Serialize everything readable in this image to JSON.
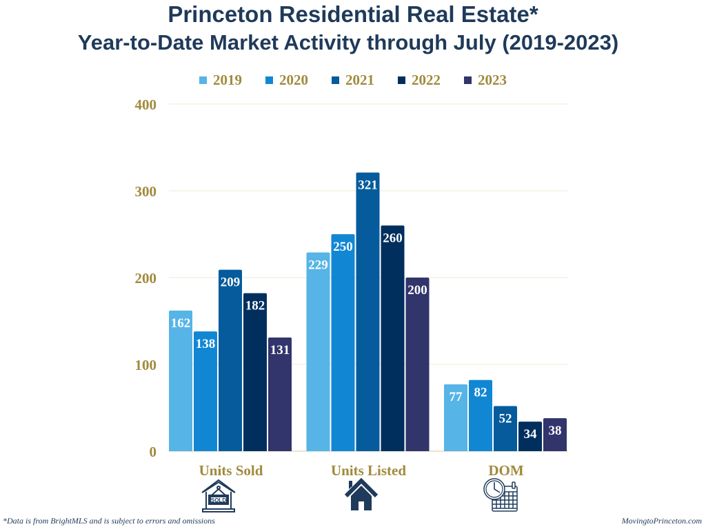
{
  "header": {
    "title": "Princeton Residential Real Estate*",
    "subtitle": "Year-to-Date Market Activity through July (2019-2023)"
  },
  "legend": [
    {
      "label": "2019",
      "color": "#56b4e6"
    },
    {
      "label": "2020",
      "color": "#1187d4"
    },
    {
      "label": "2021",
      "color": "#055b9c"
    },
    {
      "label": "2022",
      "color": "#002f5e"
    },
    {
      "label": "2023",
      "color": "#32346c"
    }
  ],
  "chart_data": {
    "type": "bar",
    "title": "Princeton Residential Real Estate* Year-to-Date Market Activity through July (2019-2023)",
    "xlabel": "",
    "ylabel": "",
    "categories": [
      "Units Sold",
      "Units Listed",
      "DOM"
    ],
    "series": [
      {
        "name": "2019",
        "color": "#56b4e6",
        "values": [
          162,
          229,
          77
        ]
      },
      {
        "name": "2020",
        "color": "#1187d4",
        "values": [
          138,
          250,
          82
        ]
      },
      {
        "name": "2021",
        "color": "#055b9c",
        "values": [
          209,
          321,
          52
        ]
      },
      {
        "name": "2022",
        "color": "#002f5e",
        "values": [
          182,
          260,
          34
        ]
      },
      {
        "name": "2023",
        "color": "#32346c",
        "values": [
          131,
          200,
          38
        ]
      }
    ],
    "ylim": [
      0,
      400
    ],
    "yticks": [
      0,
      100,
      200,
      300,
      400
    ],
    "grid": true,
    "legend_position": "top-center",
    "data_labels": true
  },
  "category_icons": [
    {
      "category": "Units Sold",
      "icon": "sold-house-icon",
      "sign_text": "SOLD"
    },
    {
      "category": "Units Listed",
      "icon": "house-icon"
    },
    {
      "category": "DOM",
      "icon": "clock-calendar-icon"
    }
  ],
  "colors": {
    "title": "#1f3a5a",
    "axis_text": "#a08a3c",
    "grid": "#efe8d6",
    "icon": "#1f3a5a"
  },
  "footer": {
    "disclaimer": "*Data is from BrightMLS and is subject to errors and omissions",
    "source": "MovingtoPrinceton.com"
  }
}
